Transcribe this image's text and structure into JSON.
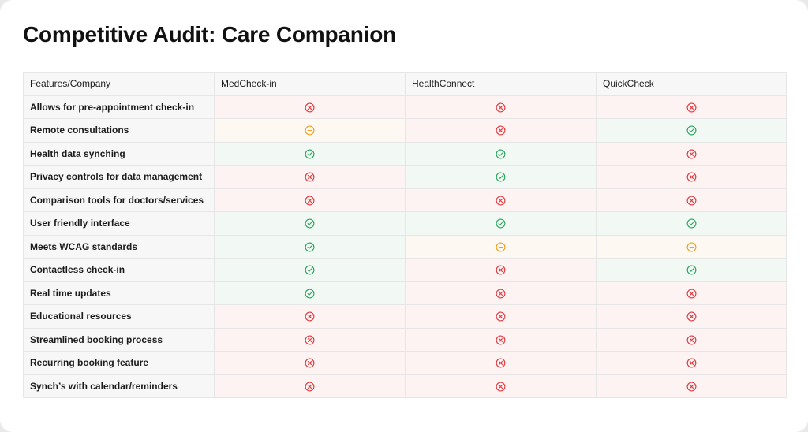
{
  "title": "Competitive Audit: Care Companion",
  "colors": {
    "no": "#e0393e",
    "yes": "#27a55a",
    "partial": "#f0a020"
  },
  "columns": [
    "Features/Company",
    "MedCheck-in",
    "HealthConnect",
    "QuickCheck"
  ],
  "rows": [
    {
      "feature": "Allows for pre-appointment check-in",
      "values": [
        "no",
        "no",
        "no"
      ]
    },
    {
      "feature": "Remote consultations",
      "values": [
        "partial",
        "no",
        "yes"
      ]
    },
    {
      "feature": "Health data synching",
      "values": [
        "yes",
        "yes",
        "no"
      ]
    },
    {
      "feature": "Privacy controls for data management",
      "values": [
        "no",
        "yes",
        "no"
      ]
    },
    {
      "feature": "Comparison tools for doctors/services",
      "values": [
        "no",
        "no",
        "no"
      ]
    },
    {
      "feature": "User friendly interface",
      "values": [
        "yes",
        "yes",
        "yes"
      ]
    },
    {
      "feature": "Meets WCAG standards",
      "values": [
        "yes",
        "partial",
        "partial"
      ]
    },
    {
      "feature": "Contactless check-in",
      "values": [
        "yes",
        "no",
        "yes"
      ]
    },
    {
      "feature": "Real time updates",
      "values": [
        "yes",
        "no",
        "no"
      ]
    },
    {
      "feature": "Educational resources",
      "values": [
        "no",
        "no",
        "no"
      ]
    },
    {
      "feature": "Streamlined booking process",
      "values": [
        "no",
        "no",
        "no"
      ]
    },
    {
      "feature": "Recurring booking feature",
      "values": [
        "no",
        "no",
        "no"
      ]
    },
    {
      "feature": "Synch’s with calendar/reminders",
      "values": [
        "no",
        "no",
        "no"
      ]
    }
  ]
}
